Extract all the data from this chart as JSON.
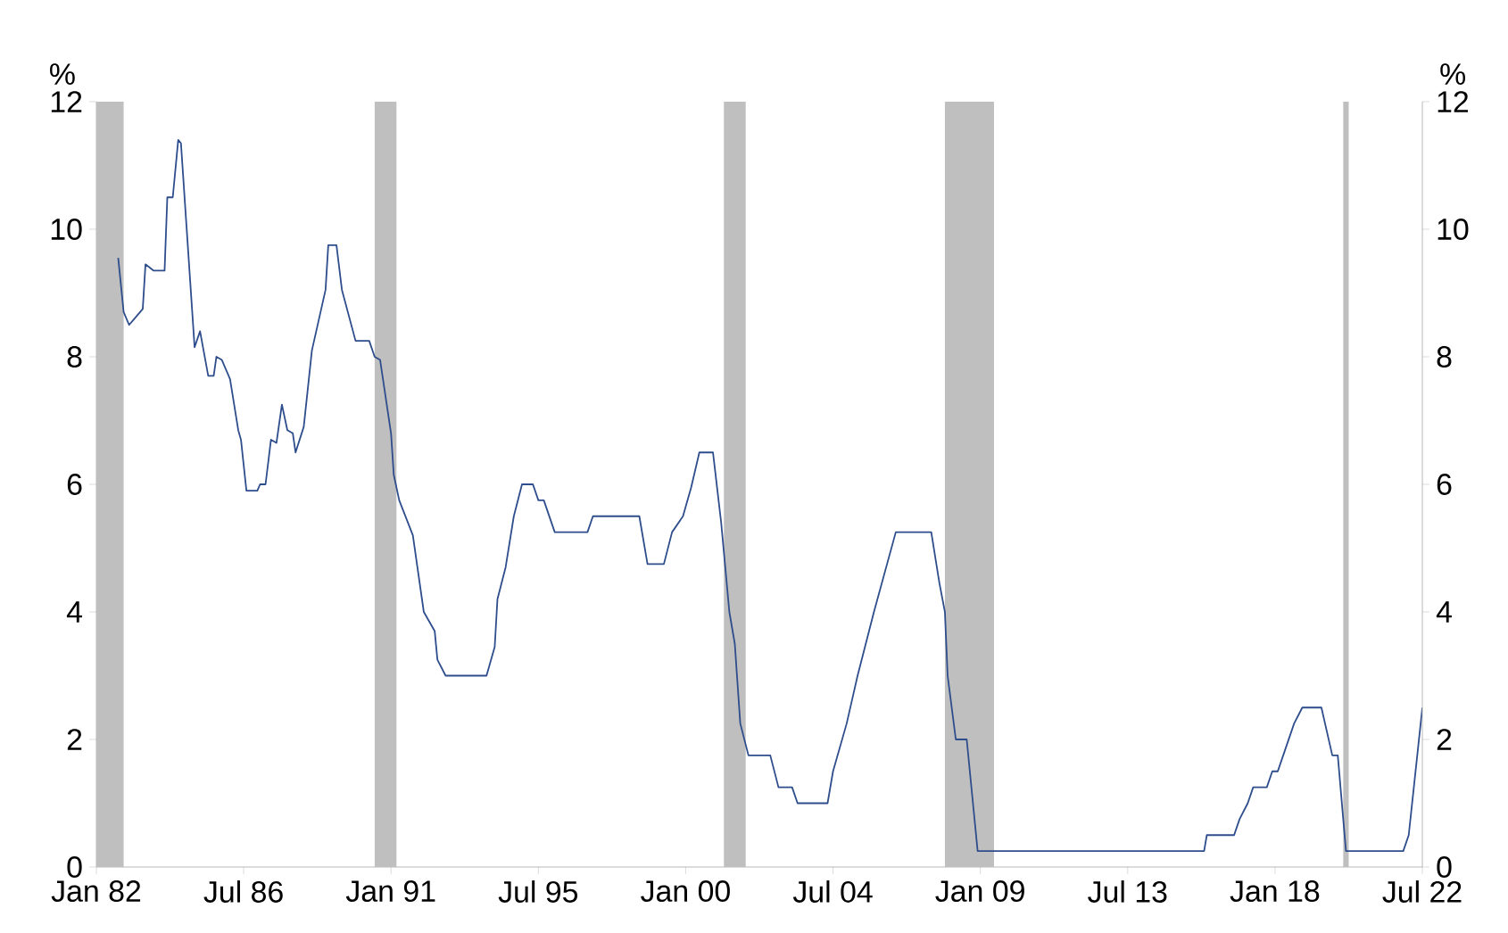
{
  "chart_data": {
    "type": "line",
    "ylabel": "%",
    "y2label": "%",
    "x": [
      "1982-09",
      "1982-11",
      "1983-01",
      "1983-03",
      "1983-06",
      "1983-07",
      "1983-10",
      "1984-02",
      "1984-03",
      "1984-05",
      "1984-07",
      "1984-08",
      "1985-01",
      "1985-03",
      "1985-06",
      "1985-08",
      "1985-09",
      "1985-11",
      "1986-02",
      "1986-05",
      "1986-06",
      "1986-08",
      "1986-12",
      "1987-01",
      "1987-03",
      "1987-05",
      "1987-07",
      "1987-09",
      "1987-11",
      "1988-01",
      "1988-02",
      "1988-05",
      "1988-08",
      "1989-01",
      "1989-02",
      "1989-05",
      "1989-07",
      "1989-12",
      "1990-05",
      "1990-07",
      "1990-09",
      "1991-01",
      "1991-02",
      "1991-04",
      "1991-09",
      "1992-01",
      "1992-05",
      "1992-06",
      "1992-09",
      "1993-12",
      "1994-03",
      "1994-04",
      "1994-07",
      "1994-10",
      "1995-01",
      "1995-05",
      "1995-07",
      "1995-09",
      "1996-01",
      "1997-01",
      "1997-03",
      "1998-08",
      "1998-11",
      "1999-05",
      "1999-08",
      "1999-12",
      "2000-03",
      "2000-06",
      "2000-11",
      "2001-02",
      "2001-05",
      "2001-07",
      "2001-09",
      "2001-12",
      "2002-08",
      "2002-11",
      "2003-04",
      "2003-06",
      "2004-05",
      "2004-07",
      "2004-12",
      "2005-04",
      "2005-10",
      "2006-06",
      "2007-07",
      "2007-10",
      "2007-12",
      "2008-01",
      "2008-04",
      "2008-08",
      "2008-12",
      "2015-11",
      "2015-12",
      "2016-10",
      "2016-12",
      "2017-03",
      "2017-05",
      "2017-10",
      "2017-12",
      "2018-02",
      "2018-04",
      "2018-06",
      "2018-08",
      "2018-11",
      "2019-06",
      "2019-10",
      "2019-12",
      "2020-03",
      "2021-12",
      "2022-02",
      "2022-04",
      "2022-07"
    ],
    "values": [
      9.55,
      8.7,
      8.5,
      8.6,
      8.75,
      9.45,
      9.35,
      9.35,
      10.5,
      10.5,
      11.4,
      11.35,
      8.15,
      8.4,
      7.7,
      7.7,
      8.0,
      7.95,
      7.65,
      6.85,
      6.7,
      5.9,
      5.9,
      6.0,
      6.0,
      6.7,
      6.65,
      7.25,
      6.85,
      6.8,
      6.5,
      6.9,
      8.1,
      9.05,
      9.75,
      9.75,
      9.05,
      8.25,
      8.25,
      8.0,
      7.95,
      6.8,
      6.15,
      5.75,
      5.2,
      4.0,
      3.7,
      3.25,
      3.0,
      3.0,
      3.45,
      4.2,
      4.7,
      5.5,
      6.0,
      6.0,
      5.75,
      5.75,
      5.25,
      5.25,
      5.5,
      5.5,
      4.75,
      4.75,
      5.25,
      5.5,
      5.95,
      6.5,
      6.5,
      5.4,
      4.0,
      3.5,
      2.25,
      1.75,
      1.75,
      1.25,
      1.25,
      1.0,
      1.0,
      1.5,
      2.25,
      3.0,
      4.0,
      5.25,
      5.25,
      4.45,
      4.0,
      3.0,
      2.0,
      2.0,
      0.25,
      0.25,
      0.5,
      0.5,
      0.75,
      1.0,
      1.25,
      1.25,
      1.5,
      1.5,
      1.75,
      2.0,
      2.25,
      2.5,
      2.5,
      1.75,
      1.75,
      0.25,
      0.25,
      0.5,
      1.3,
      2.5
    ],
    "color": "#2e4d8c",
    "marker": "none",
    "line_style": "solid",
    "xlim": [
      "1982-01",
      "2022-07"
    ],
    "xticks": [
      {
        "value": "1982-01",
        "label": "Jan 82"
      },
      {
        "value": "1986-07",
        "label": "Jul 86"
      },
      {
        "value": "1991-01",
        "label": "Jan 91"
      },
      {
        "value": "1995-07",
        "label": "Jul 95"
      },
      {
        "value": "2000-01",
        "label": "Jan 00"
      },
      {
        "value": "2004-07",
        "label": "Jul 04"
      },
      {
        "value": "2009-01",
        "label": "Jan 09"
      },
      {
        "value": "2013-07",
        "label": "Jul 13"
      },
      {
        "value": "2018-01",
        "label": "Jan 18"
      },
      {
        "value": "2022-07",
        "label": "Jul 22"
      }
    ],
    "ylim": [
      0,
      12
    ],
    "yticks": [
      0,
      2,
      4,
      6,
      8,
      10,
      12
    ],
    "y2lim": [
      0,
      12
    ],
    "y2ticks": [
      0,
      2,
      4,
      6,
      8,
      10,
      12
    ],
    "bands": [
      {
        "axis": "x",
        "from": "1982-01",
        "to": "1982-11",
        "color": "#bfbfbf"
      },
      {
        "axis": "x",
        "from": "1990-07",
        "to": "1991-03",
        "color": "#bfbfbf"
      },
      {
        "axis": "x",
        "from": "2001-03",
        "to": "2001-11",
        "color": "#bfbfbf"
      },
      {
        "axis": "x",
        "from": "2007-12",
        "to": "2009-06",
        "color": "#bfbfbf"
      },
      {
        "axis": "x",
        "from": "2020-02",
        "to": "2020-04",
        "color": "#bfbfbf"
      }
    ],
    "grid": false
  }
}
